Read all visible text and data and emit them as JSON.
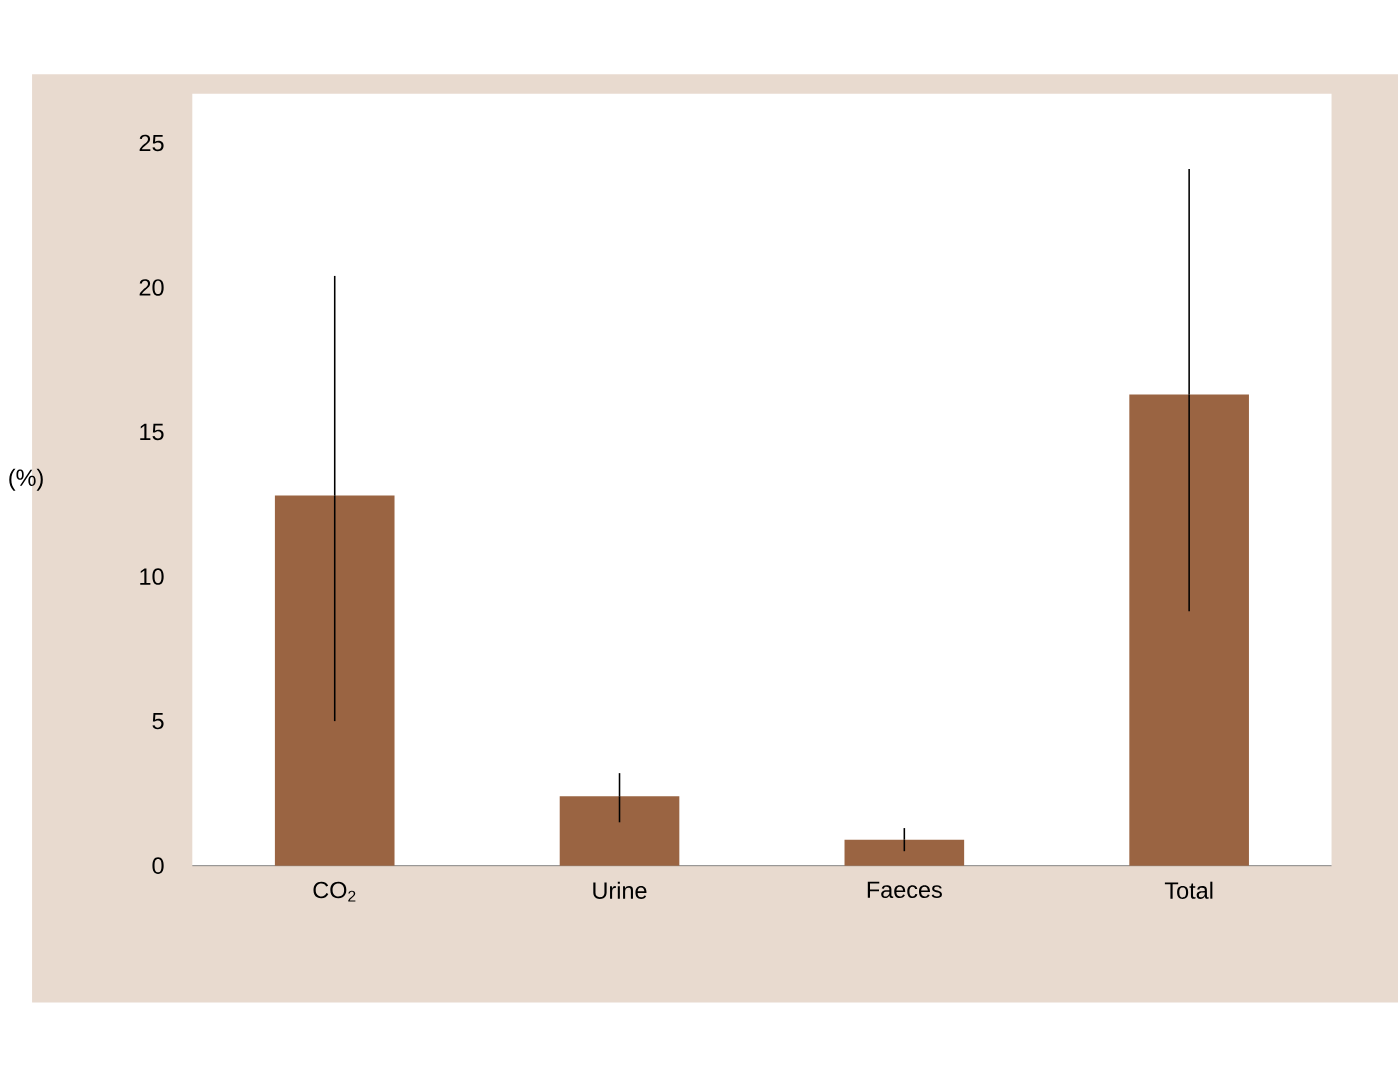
{
  "chart_data": {
    "type": "bar",
    "ylabel": "(%)",
    "categories": [
      "CO$_{2}$",
      "Urine",
      "Faeces",
      "Total"
    ],
    "values": [
      12.8,
      2.4,
      0.9,
      16.3
    ],
    "errors": [
      [
        5.0,
        20.4
      ],
      [
        1.5,
        3.2
      ],
      [
        0.5,
        1.3
      ],
      [
        8.8,
        24.1
      ]
    ],
    "color": "#9a6442",
    "ylim": [
      0,
      26.7
    ],
    "yticks": [
      0,
      5,
      10,
      15,
      20,
      25
    ],
    "grid": false
  }
}
